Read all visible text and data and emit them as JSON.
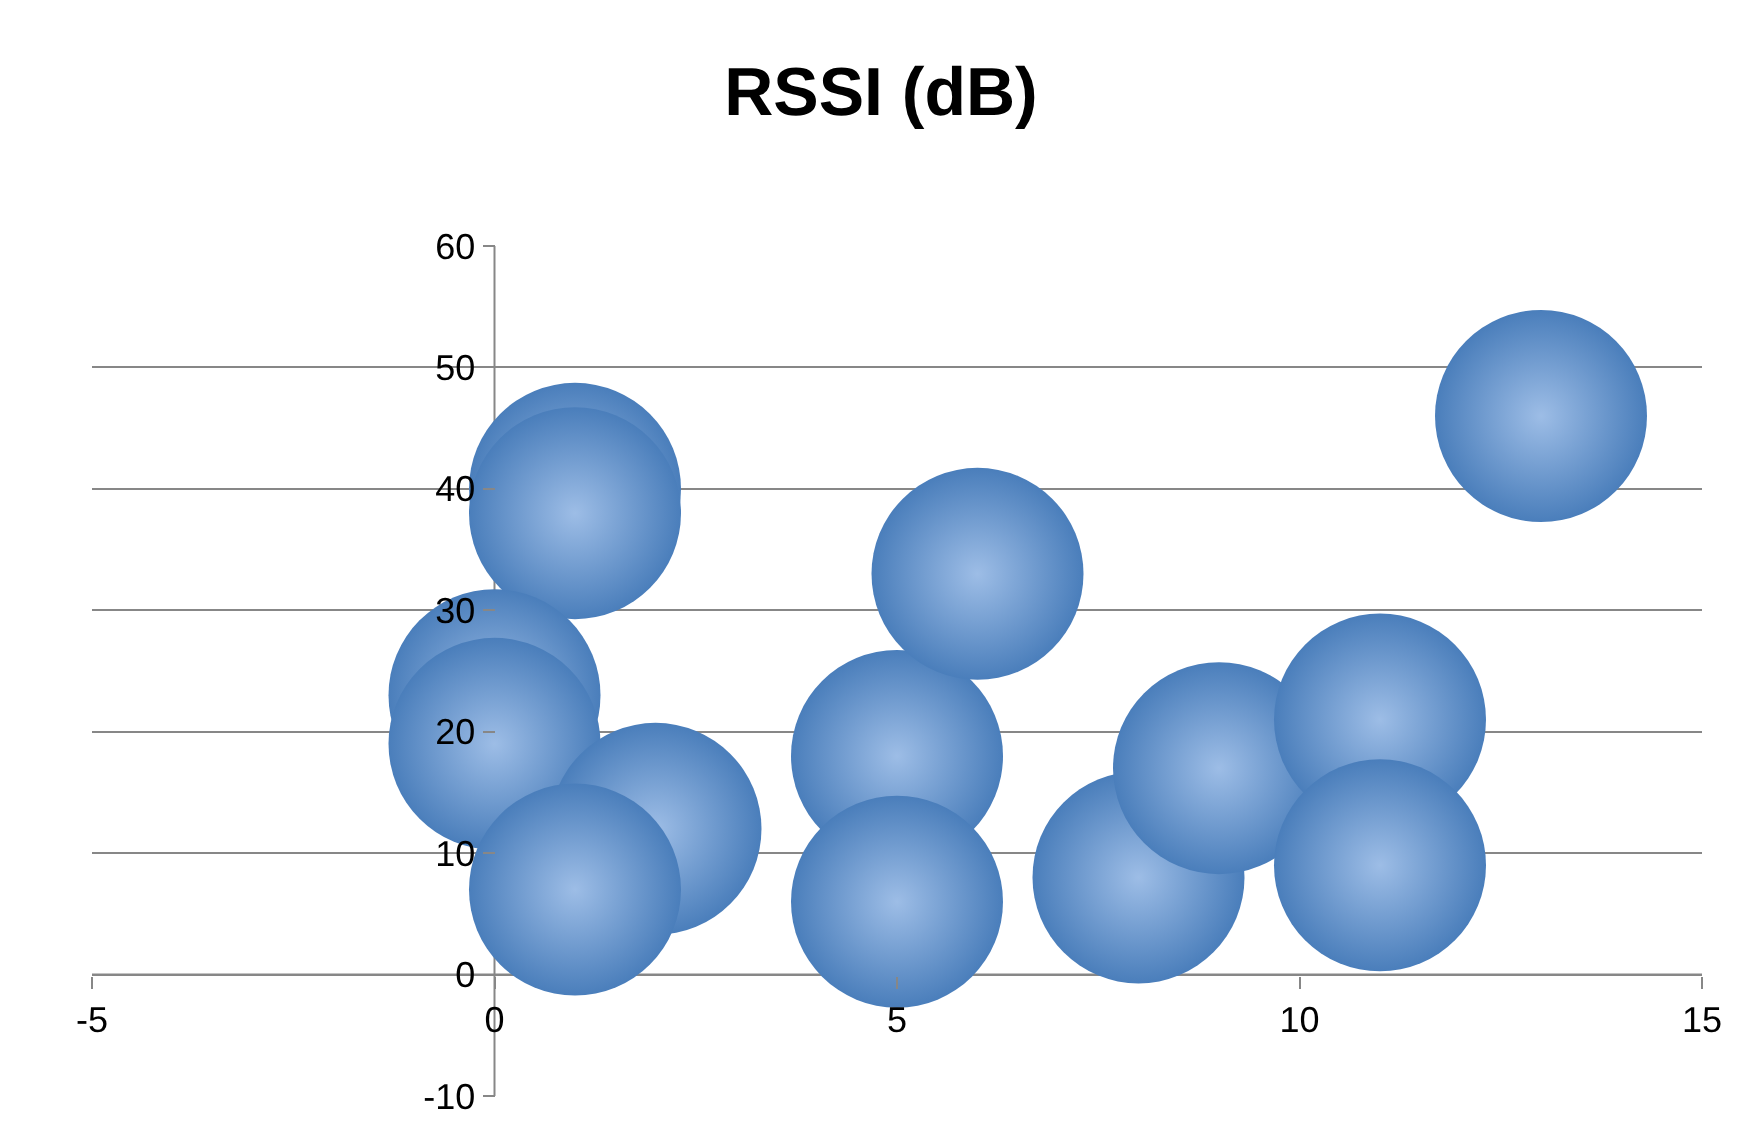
{
  "chart_data": {
    "type": "bubble",
    "title": "RSSI (dB)",
    "x": [
      1,
      1,
      0,
      0,
      2,
      1,
      5,
      5,
      6,
      8,
      9,
      11,
      11,
      13
    ],
    "values": [
      40,
      38,
      23,
      19,
      12,
      7,
      18,
      6,
      33,
      8,
      17,
      21,
      9,
      46
    ],
    "sizes": [
      1,
      1,
      1,
      1,
      1,
      1,
      1,
      1,
      1,
      1,
      1,
      1,
      1,
      1
    ],
    "color": "#4a7ebb",
    "xlim": [
      -5,
      15
    ],
    "xticks": [
      -5,
      0,
      5,
      10,
      15
    ],
    "ylim": [
      -10,
      60
    ],
    "yticks": [
      -10,
      0,
      10,
      20,
      30,
      40,
      50,
      60
    ],
    "grid": "y",
    "legend": false
  }
}
